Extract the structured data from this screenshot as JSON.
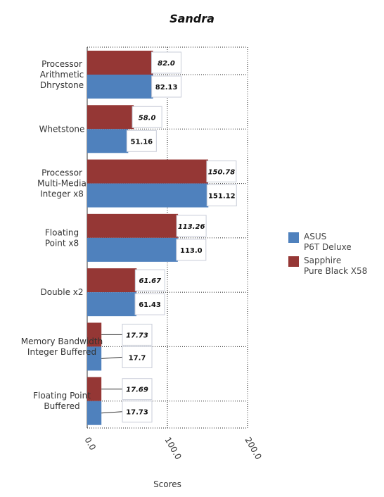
{
  "chart_data": {
    "type": "bar",
    "orientation": "horizontal",
    "title": "Sandra",
    "xlabel": "Scores",
    "ylabel": "",
    "xlim": [
      0,
      200
    ],
    "xticks": [
      "0.0",
      "100.0",
      "200.0"
    ],
    "grid": true,
    "legend_position": "right",
    "categories": [
      [
        "Processor",
        "Arithmetic",
        "Dhrystone"
      ],
      [
        "Whetstone"
      ],
      [
        "Processor",
        "Multi-Media",
        "Integer x8"
      ],
      [
        "Floating",
        "Point x8"
      ],
      [
        "Double x2"
      ],
      [
        "Memory Bandwidth",
        "Integer Buffered"
      ],
      [
        "Floating Point",
        "Buffered"
      ]
    ],
    "series": [
      {
        "name": [
          "ASUS",
          "P6T Deluxe"
        ],
        "color": "#4f81bd",
        "values": [
          82.13,
          51.16,
          151.12,
          113.0,
          61.43,
          17.7,
          17.73
        ],
        "labels": [
          "82.13",
          "51.16",
          "151.12",
          "113.0",
          "61.43",
          "17.7",
          "17.73"
        ]
      },
      {
        "name": [
          "Sapphire",
          "Pure Black X58"
        ],
        "color": "#953735",
        "values": [
          82.0,
          58.0,
          150.78,
          113.26,
          61.67,
          17.73,
          17.69
        ],
        "labels": [
          "82.0",
          "58.0",
          "150.78",
          "113.26",
          "61.67",
          "17.73",
          "17.69"
        ]
      }
    ]
  }
}
